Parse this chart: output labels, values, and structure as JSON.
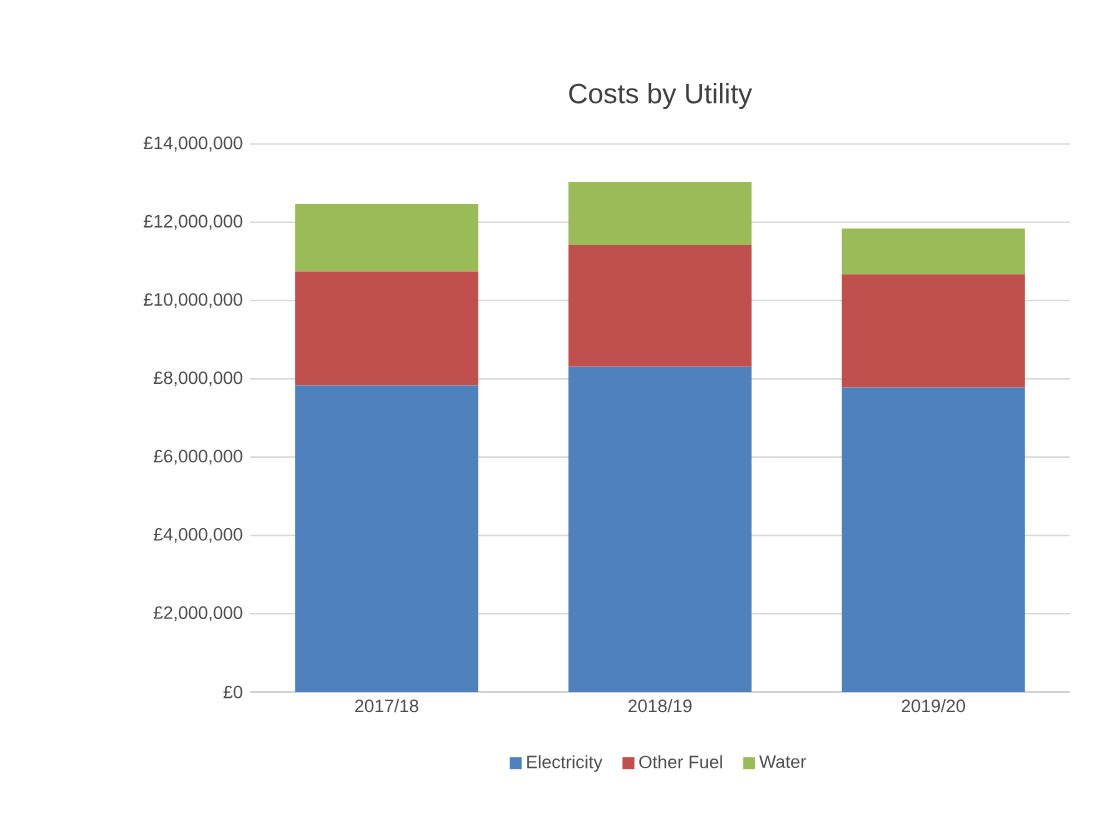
{
  "chart_data": {
    "type": "bar",
    "title": "Costs by Utility",
    "categories": [
      "2017/18",
      "2018/19",
      "2019/20"
    ],
    "stacked": true,
    "series": [
      {
        "name": "Electricity",
        "color": "#4f81bd",
        "values": [
          7830000,
          8310000,
          7780000
        ]
      },
      {
        "name": "Other Fuel",
        "color": "#c0504d",
        "values": [
          2910000,
          3110000,
          2890000
        ]
      },
      {
        "name": "Water",
        "color": "#9bbb59",
        "values": [
          1730000,
          1610000,
          1170000
        ]
      }
    ],
    "ylim": [
      0,
      14000000
    ],
    "yticks": [
      {
        "value": 0,
        "label": "£0"
      },
      {
        "value": 2000000,
        "label": "£2,000,000"
      },
      {
        "value": 4000000,
        "label": "£4,000,000"
      },
      {
        "value": 6000000,
        "label": "£6,000,000"
      },
      {
        "value": 8000000,
        "label": "£8,000,000"
      },
      {
        "value": 10000000,
        "label": "£10,000,000"
      },
      {
        "value": 12000000,
        "label": "£12,000,000"
      },
      {
        "value": 14000000,
        "label": "£14,000,000"
      }
    ],
    "grid": "y",
    "legend": "bottom"
  }
}
